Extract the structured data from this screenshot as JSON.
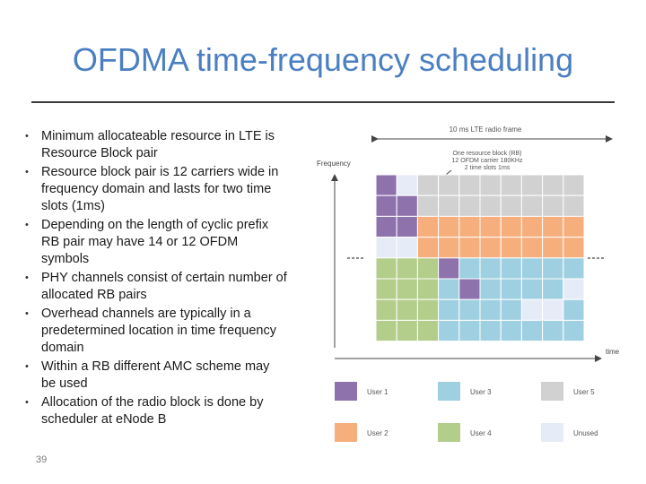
{
  "slide": {
    "title": "OFDMA time-frequency scheduling",
    "page_number": "39",
    "bullets": [
      "Minimum allocateable resource in LTE is Resource Block pair",
      "Resource block pair is 12 carriers wide in frequency domain and lasts for two time slots (1ms)",
      "Depending on the length of cyclic prefix RB pair may have 14 or 12 OFDM symbols",
      "PHY channels consist of certain number of allocated RB pairs",
      "Overhead channels are typically in a predetermined location in time frequency domain",
      "Within a RB different AMC scheme may be used",
      "Allocation of the radio block is done by scheduler at eNode B"
    ]
  },
  "diagram": {
    "frame_label": "10 ms LTE radio frame",
    "frequency_label": "Frequency",
    "time_label": "time",
    "rb_note": [
      "One resource block (RB)",
      "12 OFDM carrier 180KHz",
      "2 time slots 1ms"
    ],
    "colors": {
      "user1": "#8e72ac",
      "user2": "#f7ae7d",
      "user3": "#9fd0e1",
      "user4": "#b3cd8a",
      "user5": "#d1d1d1",
      "unused": "#e5ecf7"
    },
    "legend": [
      {
        "key": "user1",
        "label": "User 1"
      },
      {
        "key": "user3",
        "label": "User 3"
      },
      {
        "key": "user5",
        "label": "User 5"
      },
      {
        "key": "user2",
        "label": "User 2"
      },
      {
        "key": "user4",
        "label": "User 4"
      },
      {
        "key": "unused",
        "label": "Unused"
      }
    ],
    "grid": [
      [
        "user1",
        "unused",
        "user5",
        "user5",
        "user5",
        "user5",
        "user5",
        "user5",
        "user5",
        "user5"
      ],
      [
        "user1",
        "user1",
        "user5",
        "user5",
        "user5",
        "user5",
        "user5",
        "user5",
        "user5",
        "user5"
      ],
      [
        "user1",
        "user1",
        "user2",
        "user2",
        "user2",
        "user2",
        "user2",
        "user2",
        "user2",
        "user2"
      ],
      [
        "unused",
        "unused",
        "user2",
        "user2",
        "user2",
        "user2",
        "user2",
        "user2",
        "user2",
        "user2"
      ],
      [
        "user4",
        "user4",
        "user4",
        "user1",
        "user3",
        "user3",
        "user3",
        "user3",
        "user3",
        "user3"
      ],
      [
        "user4",
        "user4",
        "user4",
        "user3",
        "user1",
        "user3",
        "user3",
        "user3",
        "user3",
        "unused"
      ],
      [
        "user4",
        "user4",
        "user4",
        "user3",
        "user3",
        "user3",
        "user3",
        "unused",
        "unused",
        "user3"
      ],
      [
        "user4",
        "user4",
        "user4",
        "user3",
        "user3",
        "user3",
        "user3",
        "user3",
        "user3",
        "user3"
      ]
    ]
  }
}
